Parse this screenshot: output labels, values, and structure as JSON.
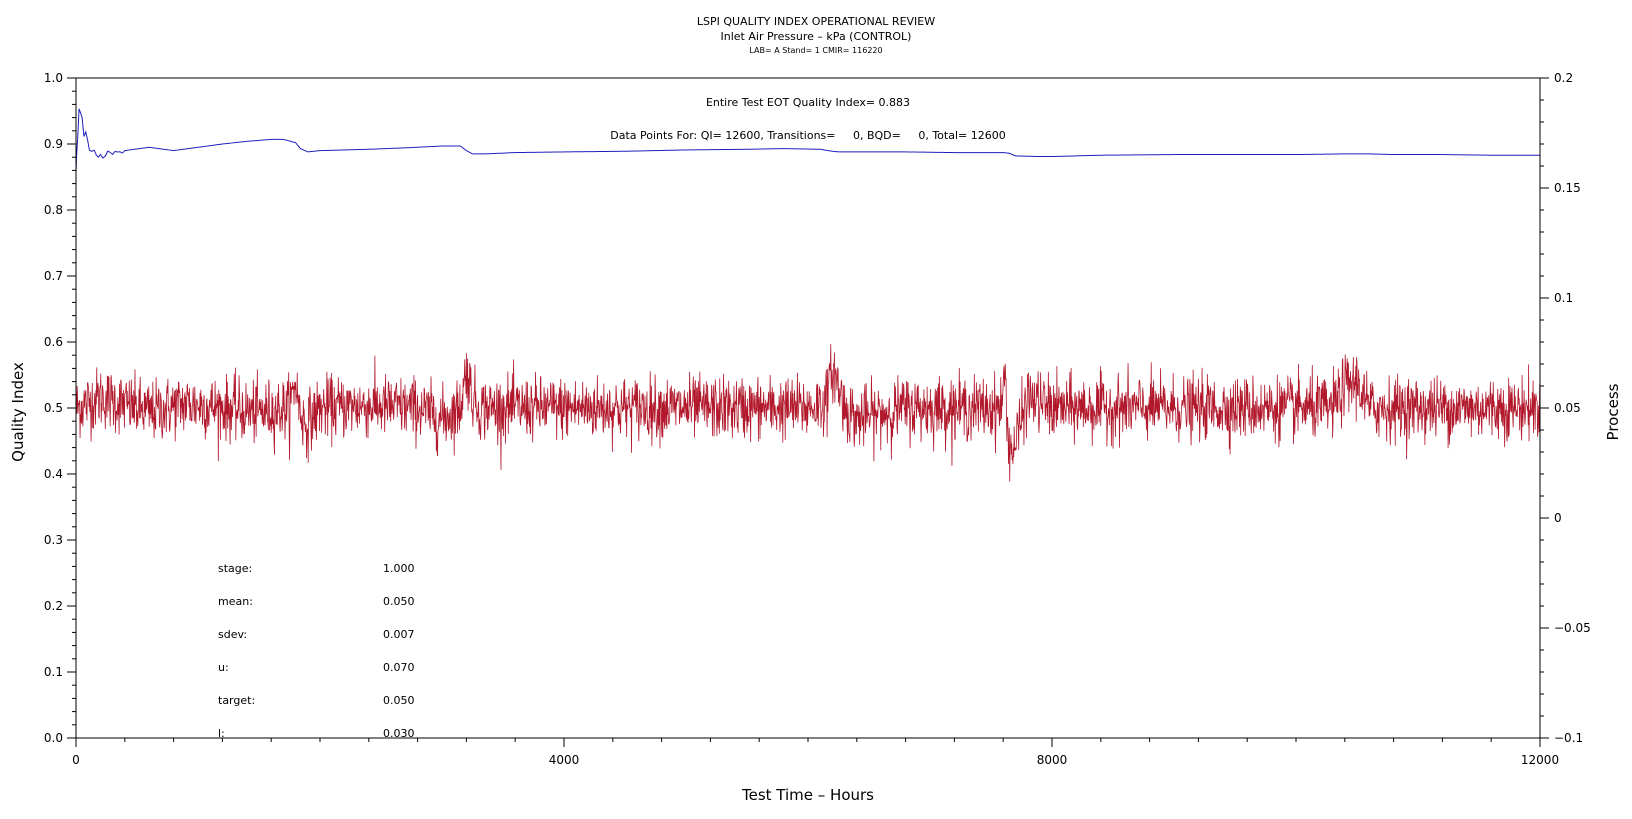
{
  "chart_data": {
    "type": "line",
    "title": "LSPI QUALITY INDEX OPERATIONAL REVIEW",
    "subtitle": "Inlet Air Pressure – kPa (CONTROL)",
    "caption": "LAB= A Stand= 1 CMIR= 116220",
    "xlabel": "Test Time – Hours",
    "ylabel_left": "Quality Index",
    "ylabel_right": "Process",
    "xlim": [
      0,
      12000
    ],
    "ylim_left": [
      0,
      1
    ],
    "ylim_right": [
      -0.1,
      0.2
    ],
    "xticks": [
      "0",
      "4000",
      "8000",
      "12000"
    ],
    "yticks_left": [
      "0.0",
      "0.1",
      "0.2",
      "0.3",
      "0.4",
      "0.5",
      "0.6",
      "0.7",
      "0.8",
      "0.9",
      "1.0"
    ],
    "yticks_right": [
      "−0.1",
      "−0.05",
      "0",
      "0.05",
      "0.1",
      "0.15",
      "0.2"
    ],
    "annotations": {
      "eot": "Entire Test EOT Quality Index=   0.883",
      "points": "Data Points For: QI= 12600, Transitions=     0, BQD=     0, Total= 12600"
    },
    "stats": [
      {
        "label": "stage:",
        "value": "1.000"
      },
      {
        "label": "mean:",
        "value": "0.050"
      },
      {
        "label": "sdev:",
        "value": "0.007"
      },
      {
        "label": "u:",
        "value": "0.070"
      },
      {
        "label": "target:",
        "value": "0.050"
      },
      {
        "label": "l:",
        "value": "0.030"
      }
    ],
    "series": [
      {
        "axis": "left",
        "color": "#1f1fbf",
        "x": [
          0,
          10,
          25,
          50,
          80,
          110,
          150,
          200,
          300,
          400,
          600,
          800,
          1000,
          1200,
          1400,
          1600,
          1700,
          1800,
          1840,
          1900,
          2000,
          2400,
          2800,
          3000,
          3150,
          3200,
          3250,
          3350,
          3600,
          4000,
          4500,
          5000,
          5500,
          5800,
          6100,
          6200,
          6260,
          6400,
          6800,
          7200,
          7600,
          7650,
          7700,
          7900,
          8000,
          8200,
          8400,
          9000,
          9600,
          10000,
          10400,
          10600,
          10800,
          11200,
          11600,
          12000
        ],
        "y": [
          0.86,
          0.9,
          0.95,
          0.94,
          0.91,
          0.895,
          0.89,
          0.885,
          0.885,
          0.89,
          0.895,
          0.89,
          0.895,
          0.9,
          0.904,
          0.907,
          0.907,
          0.902,
          0.893,
          0.888,
          0.89,
          0.892,
          0.895,
          0.897,
          0.897,
          0.89,
          0.885,
          0.885,
          0.887,
          0.888,
          0.889,
          0.891,
          0.892,
          0.893,
          0.892,
          0.889,
          0.888,
          0.888,
          0.888,
          0.887,
          0.887,
          0.886,
          0.882,
          0.881,
          0.881,
          0.882,
          0.883,
          0.884,
          0.884,
          0.884,
          0.885,
          0.885,
          0.884,
          0.884,
          0.883,
          0.883
        ]
      },
      {
        "axis": "right",
        "color": "#b2182b",
        "baseline": 0.05,
        "noise_sd": 0.007,
        "x_events": [
          0,
          200,
          600,
          900,
          1200,
          1500,
          1750,
          1800,
          1830,
          1880,
          2000,
          2400,
          2800,
          3000,
          3150,
          3200,
          3250,
          3300,
          3500,
          4000,
          4500,
          5000,
          5500,
          5800,
          6000,
          6150,
          6200,
          6250,
          6300,
          6400,
          6800,
          7200,
          7500,
          7580,
          7620,
          7640,
          7680,
          7800,
          8000,
          8500,
          9000,
          9500,
          9800,
          10000,
          10300,
          10400,
          10500,
          10600,
          11000,
          11500,
          12000
        ],
        "y_events": [
          0.05,
          0.055,
          0.048,
          0.052,
          0.05,
          0.048,
          0.05,
          0.062,
          0.05,
          0.042,
          0.05,
          0.051,
          0.05,
          0.045,
          0.05,
          0.068,
          0.055,
          0.05,
          0.05,
          0.05,
          0.05,
          0.05,
          0.05,
          0.05,
          0.05,
          0.053,
          0.068,
          0.06,
          0.05,
          0.045,
          0.05,
          0.05,
          0.05,
          0.05,
          0.065,
          0.035,
          0.03,
          0.055,
          0.05,
          0.05,
          0.05,
          0.05,
          0.05,
          0.05,
          0.05,
          0.06,
          0.062,
          0.05,
          0.05,
          0.05,
          0.05
        ]
      }
    ]
  }
}
